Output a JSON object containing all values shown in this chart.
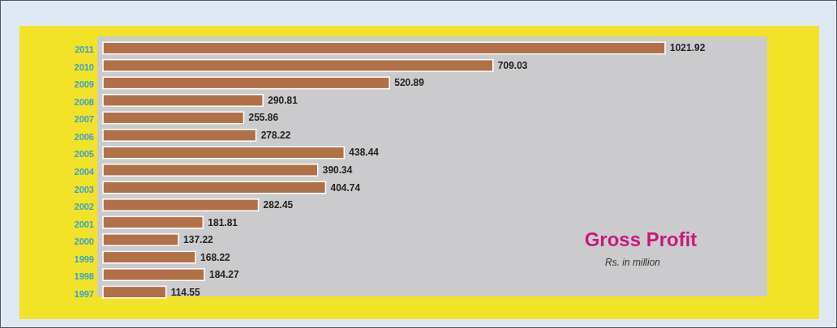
{
  "chart_data": {
    "type": "bar",
    "orientation": "horizontal",
    "title": "Gross Profit",
    "subtitle": "Rs. in million",
    "categories": [
      "2011",
      "2010",
      "2009",
      "2008",
      "2007",
      "2006",
      "2005",
      "2004",
      "2003",
      "2002",
      "2001",
      "2000",
      "1999",
      "1998",
      "1997"
    ],
    "values": [
      1021.92,
      709.03,
      520.89,
      290.81,
      255.86,
      278.22,
      438.44,
      390.34,
      404.74,
      282.45,
      181.81,
      137.22,
      168.22,
      184.27,
      114.55
    ],
    "color": "#b07048",
    "data_labels": true
  }
}
